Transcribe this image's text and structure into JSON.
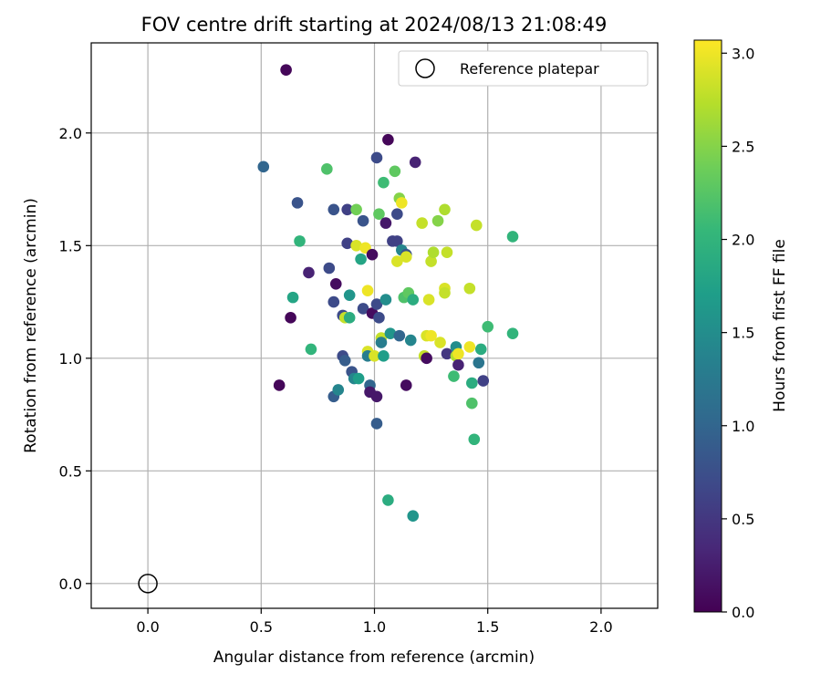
{
  "chart_data": {
    "type": "scatter",
    "title": "FOV centre drift starting at 2024/08/13 21:08:49",
    "xlabel": "Angular distance from reference (arcmin)",
    "ylabel": "Rotation from reference (arcmin)",
    "xlim": [
      -0.25,
      2.25
    ],
    "ylim": [
      -0.11,
      2.4
    ],
    "xticks": [
      "0.0",
      "0.5",
      "1.0",
      "1.5",
      "2.0"
    ],
    "yticks": [
      "0.0",
      "0.5",
      "1.0",
      "1.5",
      "2.0"
    ],
    "grid": true,
    "legend": {
      "position": "top-right",
      "entries": [
        "Reference platepar"
      ]
    },
    "reference_point": {
      "x": 0.0,
      "y": 0.0,
      "label": "Reference platepar"
    },
    "colorbar": {
      "label": "Hours from first FF file",
      "range": [
        0.0,
        3.07
      ],
      "ticks": [
        "0.0",
        "0.5",
        "1.0",
        "1.5",
        "2.0",
        "2.5",
        "3.0"
      ],
      "colormap": [
        "#440154",
        "#482878",
        "#3e4989",
        "#31688e",
        "#26828e",
        "#1f9e89",
        "#35b779",
        "#6ece58",
        "#b5de2b",
        "#fde725"
      ]
    },
    "points": [
      [
        0.61,
        2.28,
        0.05
      ],
      [
        0.51,
        1.85,
        1.0
      ],
      [
        0.58,
        0.88,
        0.05
      ],
      [
        0.63,
        1.18,
        0.05
      ],
      [
        0.64,
        1.27,
        1.8
      ],
      [
        0.66,
        1.69,
        0.8
      ],
      [
        0.67,
        1.52,
        2.0
      ],
      [
        0.71,
        1.38,
        0.3
      ],
      [
        0.72,
        1.04,
        2.0
      ],
      [
        0.79,
        1.84,
        2.2
      ],
      [
        0.8,
        1.4,
        0.7
      ],
      [
        0.82,
        1.25,
        0.7
      ],
      [
        0.82,
        1.66,
        0.8
      ],
      [
        0.82,
        0.83,
        0.9
      ],
      [
        0.83,
        1.33,
        0.1
      ],
      [
        0.84,
        0.86,
        1.4
      ],
      [
        0.86,
        1.19,
        0.7
      ],
      [
        0.86,
        1.01,
        0.7
      ],
      [
        0.87,
        0.99,
        0.9
      ],
      [
        0.87,
        1.18,
        2.8
      ],
      [
        0.88,
        1.51,
        0.6
      ],
      [
        0.88,
        1.66,
        0.6
      ],
      [
        0.89,
        1.18,
        1.9
      ],
      [
        0.89,
        1.28,
        1.6
      ],
      [
        0.9,
        0.94,
        0.8
      ],
      [
        0.91,
        0.91,
        1.4
      ],
      [
        0.92,
        1.66,
        2.4
      ],
      [
        0.92,
        1.5,
        2.9
      ],
      [
        0.93,
        0.91,
        1.7
      ],
      [
        0.94,
        1.44,
        1.8
      ],
      [
        0.95,
        1.61,
        0.8
      ],
      [
        0.95,
        1.22,
        0.7
      ],
      [
        0.96,
        1.49,
        3.0
      ],
      [
        0.97,
        1.3,
        3.0
      ],
      [
        0.97,
        1.03,
        2.9
      ],
      [
        0.97,
        1.01,
        1.3
      ],
      [
        0.98,
        0.88,
        1.0
      ],
      [
        0.98,
        0.85,
        0.2
      ],
      [
        0.99,
        1.46,
        0.1
      ],
      [
        0.99,
        1.2,
        0.1
      ],
      [
        1.0,
        1.01,
        2.9
      ],
      [
        1.01,
        1.24,
        0.7
      ],
      [
        1.01,
        1.89,
        0.7
      ],
      [
        1.01,
        0.71,
        0.9
      ],
      [
        1.01,
        0.83,
        0.2
      ],
      [
        1.02,
        1.64,
        2.3
      ],
      [
        1.02,
        1.18,
        0.7
      ],
      [
        1.03,
        1.09,
        2.8
      ],
      [
        1.03,
        1.07,
        1.3
      ],
      [
        1.04,
        1.78,
        2.1
      ],
      [
        1.04,
        1.01,
        1.7
      ],
      [
        1.05,
        1.6,
        0.2
      ],
      [
        1.05,
        1.26,
        1.5
      ],
      [
        1.06,
        0.37,
        1.9
      ],
      [
        1.06,
        1.97,
        0.05
      ],
      [
        1.07,
        1.11,
        1.6
      ],
      [
        1.08,
        1.52,
        0.6
      ],
      [
        1.09,
        1.83,
        2.3
      ],
      [
        1.1,
        1.52,
        0.6
      ],
      [
        1.1,
        1.64,
        0.7
      ],
      [
        1.1,
        1.43,
        2.9
      ],
      [
        1.11,
        1.71,
        2.5
      ],
      [
        1.11,
        1.1,
        1.0
      ],
      [
        1.12,
        1.69,
        3.0
      ],
      [
        1.12,
        1.48,
        1.4
      ],
      [
        1.13,
        1.27,
        2.2
      ],
      [
        1.14,
        1.46,
        0.8
      ],
      [
        1.14,
        0.88,
        0.1
      ],
      [
        1.14,
        1.45,
        2.9
      ],
      [
        1.15,
        1.29,
        2.3
      ],
      [
        1.16,
        1.08,
        1.4
      ],
      [
        1.17,
        0.3,
        1.6
      ],
      [
        1.17,
        1.26,
        1.9
      ],
      [
        1.18,
        1.87,
        0.3
      ],
      [
        1.21,
        1.6,
        2.8
      ],
      [
        1.22,
        1.01,
        2.8
      ],
      [
        1.23,
        1.1,
        2.9
      ],
      [
        1.23,
        1.0,
        0.1
      ],
      [
        1.24,
        1.26,
        2.9
      ],
      [
        1.25,
        1.1,
        3.0
      ],
      [
        1.25,
        1.43,
        2.8
      ],
      [
        1.26,
        1.47,
        2.7
      ],
      [
        1.28,
        1.61,
        2.5
      ],
      [
        1.29,
        1.07,
        2.9
      ],
      [
        1.31,
        1.66,
        2.7
      ],
      [
        1.31,
        1.31,
        2.9
      ],
      [
        1.31,
        1.29,
        2.8
      ],
      [
        1.32,
        1.02,
        0.5
      ],
      [
        1.32,
        1.47,
        2.8
      ],
      [
        1.35,
        0.92,
        2.1
      ],
      [
        1.36,
        1.01,
        2.7
      ],
      [
        1.36,
        1.05,
        1.5
      ],
      [
        1.37,
        0.97,
        0.3
      ],
      [
        1.37,
        1.02,
        3.0
      ],
      [
        1.42,
        1.05,
        3.0
      ],
      [
        1.42,
        1.31,
        2.8
      ],
      [
        1.43,
        0.8,
        2.2
      ],
      [
        1.43,
        0.89,
        1.9
      ],
      [
        1.44,
        0.64,
        2.0
      ],
      [
        1.45,
        1.59,
        2.8
      ],
      [
        1.46,
        0.98,
        1.2
      ],
      [
        1.47,
        1.04,
        1.9
      ],
      [
        1.48,
        0.9,
        0.6
      ],
      [
        1.5,
        1.14,
        2.1
      ],
      [
        1.61,
        1.54,
        2.0
      ],
      [
        1.61,
        1.11,
        2.0
      ]
    ]
  }
}
